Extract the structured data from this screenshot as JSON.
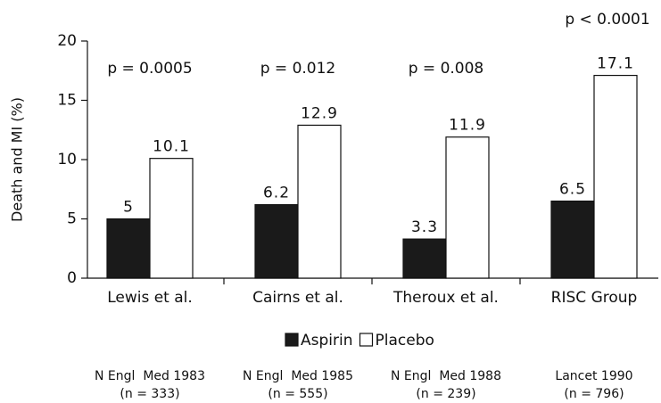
{
  "chart_data": {
    "type": "bar",
    "ylabel": "Death and MI (%)",
    "categories": [
      "Lewis et al.",
      "Cairns et al.",
      "Theroux et al.",
      "RISC Group"
    ],
    "series": [
      {
        "name": "Aspirin",
        "color": "#1a1a1a",
        "values": [
          5,
          6.2,
          3.3,
          6.5
        ]
      },
      {
        "name": "Placebo",
        "color": "#ffffff",
        "values": [
          10.1,
          12.9,
          11.9,
          17.1
        ]
      }
    ],
    "annotations": [
      "p = 0.0005",
      "p = 0.012",
      "p = 0.008",
      "p < 0.0001"
    ],
    "sources": [
      {
        "journal": "N Engl  Med 1983",
        "n": "(n = 333)"
      },
      {
        "journal": "N Engl  Med 1985",
        "n": "(n = 555)"
      },
      {
        "journal": "N Engl  Med 1988",
        "n": "(n = 239)"
      },
      {
        "journal": "Lancet 1990",
        "n": "(n = 796)"
      }
    ],
    "ylim": [
      0,
      20
    ],
    "yticks": [
      0,
      5,
      10,
      15,
      20
    ],
    "grid": false,
    "legend": "bottom"
  }
}
